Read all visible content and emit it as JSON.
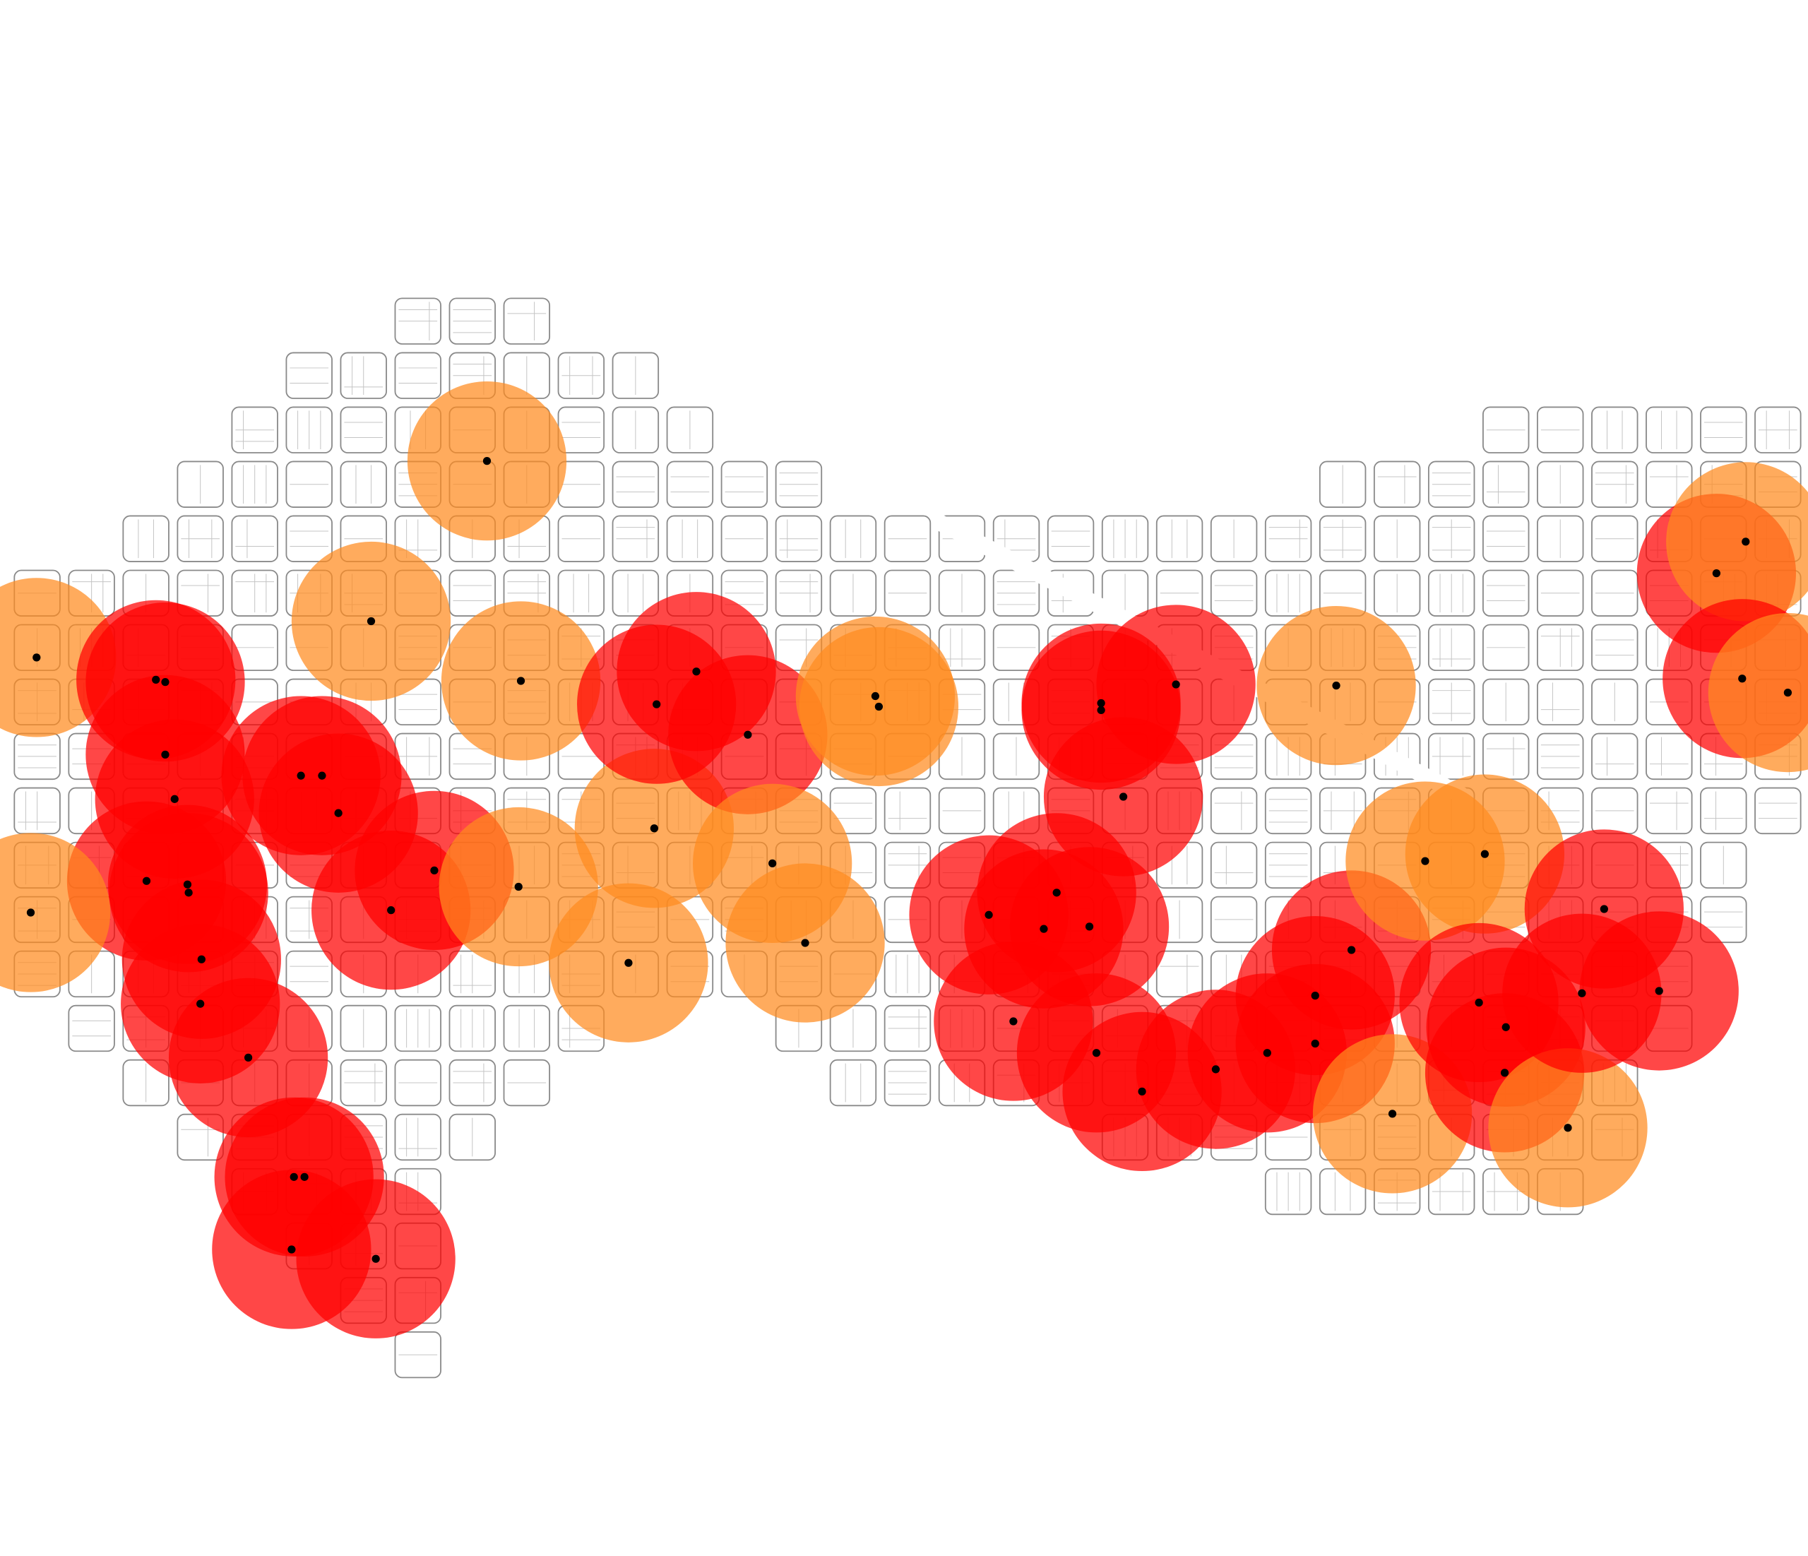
{
  "map": {
    "background_color": "#ffffff",
    "block_fill": "#ffffff",
    "block_stroke": "#8a8a8a",
    "parcel_stroke": "#c4c4c4",
    "buffer_color_low": "#ff8a1f",
    "buffer_color_high": "#ff0000",
    "buffer_opacity": 0.72,
    "point_color": "#000000",
    "point_icon": "filled-circle-marker"
  }
}
